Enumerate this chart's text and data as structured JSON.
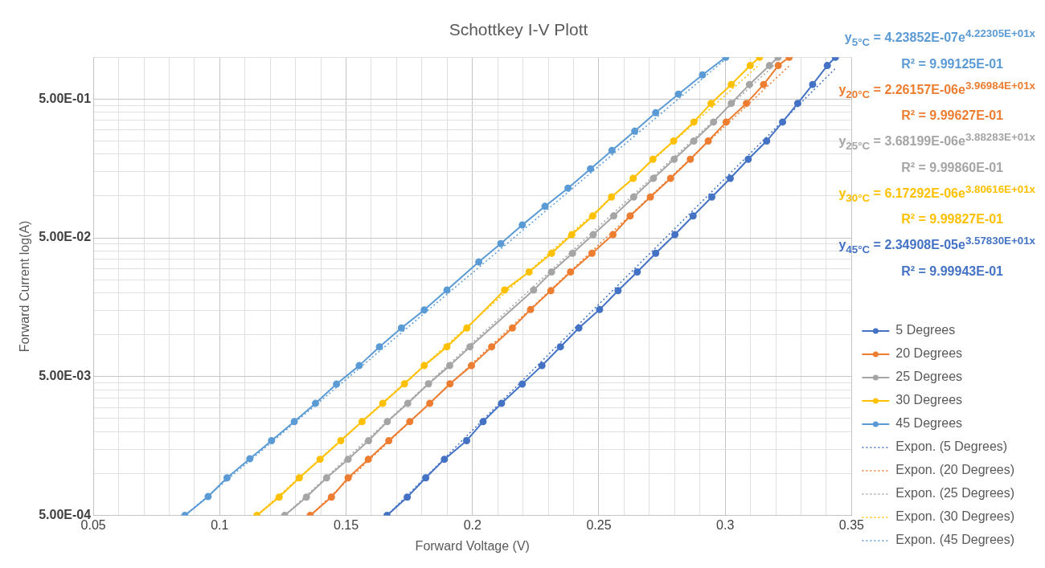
{
  "chart_data": {
    "type": "line",
    "title": "Schottkey I-V Plott",
    "xlabel": "Forward Voltage (V)",
    "ylabel": "Forward Current log(A)",
    "log": "y",
    "grid": true,
    "legend": "right",
    "marker": "circle",
    "line_style": "solid",
    "xlim": [
      0.05,
      0.35
    ],
    "xticks": [
      0.05,
      {
        "value": 0.06,
        "label": null
      },
      {
        "value": 0.07,
        "label": null
      },
      {
        "value": 0.08,
        "label": null
      },
      {
        "value": 0.09,
        "label": null
      },
      0.1,
      {
        "value": 0.11,
        "label": null
      },
      {
        "value": 0.12,
        "label": null
      },
      {
        "value": 0.13,
        "label": null
      },
      {
        "value": 0.14,
        "label": null
      },
      0.15,
      {
        "value": 0.16,
        "label": null
      },
      {
        "value": 0.17,
        "label": null
      },
      {
        "value": 0.18,
        "label": null
      },
      {
        "value": 0.19,
        "label": null
      },
      0.2,
      {
        "value": 0.21,
        "label": null
      },
      {
        "value": 0.22,
        "label": null
      },
      {
        "value": 0.23,
        "label": null
      },
      {
        "value": 0.24,
        "label": null
      },
      0.25,
      {
        "value": 0.26,
        "label": null
      },
      {
        "value": 0.27,
        "label": null
      },
      {
        "value": 0.28,
        "label": null
      },
      {
        "value": 0.29,
        "label": null
      },
      0.3,
      {
        "value": 0.31,
        "label": null
      },
      {
        "value": 0.32,
        "label": null
      },
      {
        "value": 0.33,
        "label": null
      },
      {
        "value": 0.34,
        "label": null
      },
      0.35
    ],
    "ylim": [
      0.0005,
      1
    ],
    "yticks": [
      {
        "value": 0.0005,
        "label": "5.00E-04"
      },
      {
        "value": 0.001,
        "label": null
      },
      {
        "value": 0.0015,
        "label": null
      },
      {
        "value": 0.002,
        "label": null
      },
      {
        "value": 0.0025,
        "label": null
      },
      {
        "value": 0.003,
        "label": null
      },
      {
        "value": 0.0035,
        "label": null
      },
      {
        "value": 0.004,
        "label": null
      },
      {
        "value": 0.0045,
        "label": null
      },
      {
        "value": 0.005,
        "label": "5.00E-03"
      },
      {
        "value": 0.01,
        "label": null
      },
      {
        "value": 0.015,
        "label": null
      },
      {
        "value": 0.02,
        "label": null
      },
      {
        "value": 0.025,
        "label": null
      },
      {
        "value": 0.03,
        "label": null
      },
      {
        "value": 0.035,
        "label": null
      },
      {
        "value": 0.04,
        "label": null
      },
      {
        "value": 0.045,
        "label": null
      },
      {
        "value": 0.05,
        "label": "5.00E-02"
      },
      {
        "value": 0.1,
        "label": null
      },
      {
        "value": 0.15,
        "label": null
      },
      {
        "value": 0.2,
        "label": null
      },
      {
        "value": 0.25,
        "label": null
      },
      {
        "value": 0.3,
        "label": null
      },
      {
        "value": 0.35,
        "label": null
      },
      {
        "value": 0.4,
        "label": null
      },
      {
        "value": 0.45,
        "label": null
      },
      {
        "value": 0.5,
        "label": "5.00E-01"
      },
      {
        "value": 1,
        "label": null
      }
    ],
    "series": [
      {
        "name": "5 Degrees",
        "color": "#4472c4",
        "x": [
          0.1662,
          0.1742,
          0.1815,
          0.1889,
          0.1977,
          0.2042,
          0.2115,
          0.2197,
          0.2275,
          0.2348,
          0.2421,
          0.2503,
          0.2576,
          0.2652,
          0.2725,
          0.2801,
          0.2873,
          0.2947,
          0.302,
          0.3091,
          0.3164,
          0.3227,
          0.3287,
          0.3346,
          0.3404,
          0.3436
        ],
        "values": [
          0.0005,
          0.000678,
          0.000933,
          0.00127,
          0.00173,
          0.00237,
          0.00321,
          0.00442,
          0.006,
          0.0082,
          0.0112,
          0.0152,
          0.0208,
          0.0284,
          0.0387,
          0.0527,
          0.0719,
          0.0984,
          0.134,
          0.184,
          0.249,
          0.341,
          0.465,
          0.636,
          0.871,
          1
        ]
      },
      {
        "name": "20 Degrees",
        "color": "#ed7d31",
        "x": [
          0.1358,
          0.1442,
          0.1508,
          0.1588,
          0.1669,
          0.1752,
          0.1831,
          0.1911,
          0.1996,
          0.2076,
          0.2158,
          0.223,
          0.231,
          0.2388,
          0.2473,
          0.2556,
          0.2624,
          0.2704,
          0.2784,
          0.2862,
          0.2933,
          0.3004,
          0.3084,
          0.3152,
          0.321,
          0.3253
        ],
        "values": [
          0.0005,
          0.000678,
          0.000933,
          0.00127,
          0.00173,
          0.00237,
          0.00321,
          0.00444,
          0.006,
          0.0082,
          0.0112,
          0.0152,
          0.0208,
          0.0284,
          0.0387,
          0.0527,
          0.0719,
          0.0984,
          0.134,
          0.184,
          0.249,
          0.341,
          0.465,
          0.636,
          0.871,
          1
        ]
      },
      {
        "name": "25 Degrees",
        "color": "#a5a5a5",
        "x": [
          0.1257,
          0.1343,
          0.1423,
          0.1508,
          0.1589,
          0.1663,
          0.1744,
          0.1826,
          0.191,
          0.199,
          0.2242,
          0.2313,
          0.2396,
          0.2478,
          0.2559,
          0.2638,
          0.2716,
          0.2798,
          0.2876,
          0.2954,
          0.3024,
          0.3096,
          0.3175,
          0.3209
        ],
        "values": [
          0.0005,
          0.000678,
          0.000933,
          0.00127,
          0.00173,
          0.00237,
          0.00321,
          0.00444,
          0.006,
          0.0082,
          0.021,
          0.0284,
          0.0387,
          0.0527,
          0.0719,
          0.0984,
          0.134,
          0.184,
          0.249,
          0.341,
          0.465,
          0.636,
          0.871,
          1
        ]
      },
      {
        "name": "30 Degrees",
        "color": "#ffc000",
        "x": [
          0.1147,
          0.1235,
          0.1315,
          0.1397,
          0.1479,
          0.1563,
          0.1645,
          0.1731,
          0.1809,
          0.1899,
          0.1978,
          0.2127,
          0.2224,
          0.2313,
          0.2393,
          0.2476,
          0.255,
          0.2636,
          0.2714,
          0.2796,
          0.2876,
          0.2944,
          0.3024,
          0.3099,
          0.3136
        ],
        "values": [
          0.0005,
          0.000678,
          0.000933,
          0.00127,
          0.00173,
          0.00237,
          0.00321,
          0.00444,
          0.006,
          0.0082,
          0.0112,
          0.021,
          0.0284,
          0.0387,
          0.0527,
          0.0719,
          0.0984,
          0.134,
          0.184,
          0.249,
          0.341,
          0.465,
          0.636,
          0.871,
          1
        ]
      },
      {
        "name": "45 Degrees",
        "color": "#5b9bd5",
        "x": [
          0.0862,
          0.0954,
          0.1029,
          0.1119,
          0.1205,
          0.1295,
          0.1379,
          0.1462,
          0.1552,
          0.1632,
          0.1719,
          0.1809,
          0.1899,
          0.2025,
          0.2112,
          0.2197,
          0.2287,
          0.2378,
          0.2467,
          0.2552,
          0.2642,
          0.2725,
          0.2815,
          0.291,
          0.3002
        ],
        "values": [
          0.0005,
          0.000684,
          0.000933,
          0.00128,
          0.00173,
          0.00237,
          0.00321,
          0.00442,
          0.006,
          0.0082,
          0.0112,
          0.0151,
          0.021,
          0.0335,
          0.0454,
          0.0618,
          0.0843,
          0.114,
          0.157,
          0.213,
          0.293,
          0.398,
          0.542,
          0.745,
          1
        ]
      },
      {
        "name": "Expon. (5 Degrees)",
        "color": "#4472c4",
        "marker": "none",
        "line_style": "dotted",
        "x": [
          0.1662,
          0.3436
        ],
        "values": [
          0.0005,
          0.83
        ]
      },
      {
        "name": "Expon. (20 Degrees)",
        "color": "#ed7d31",
        "marker": "none",
        "line_style": "dotted",
        "x": [
          0.1358,
          0.3253
        ],
        "values": [
          0.0005,
          0.865
        ]
      },
      {
        "name": "Expon. (25 Degrees)",
        "color": "#a5a5a5",
        "marker": "none",
        "line_style": "dotted",
        "x": [
          0.1257,
          0.3209
        ],
        "values": [
          0.0005,
          0.93
        ]
      },
      {
        "name": "Expon. (30 Degrees)",
        "color": "#ffc000",
        "marker": "none",
        "line_style": "dotted",
        "x": [
          0.1147,
          0.3136
        ],
        "values": [
          0.0005,
          0.886
        ]
      },
      {
        "name": "Expon. (45 Degrees)",
        "color": "#5b9bd5",
        "marker": "none",
        "line_style": "dotted",
        "x": [
          0.0862,
          0.3002
        ],
        "values": [
          0.0005,
          0.97
        ]
      }
    ],
    "annotations": [
      "y$_{5°C}$ = 4.23852E-07e$^{4.22305E+01x}$",
      "R² = 9.99125E-01",
      "y$_{20°C}$ = 2.26157E-06e$^{3.96984E+01x}$",
      "R² = 9.99627E-01",
      "y$_{25°C}$ = 3.68199E-06e$^{3.88283E+01x}$",
      "R² = 9.99860E-01",
      "y$_{30°C}$ = 6.17292E-06e$^{3.80616E+01x}$",
      "R² = 9.99827E-01",
      "y$_{45°C}$ = 2.34908E-05e$^{3.57830E+01x}$",
      "R² = 9.99943E-01"
    ]
  }
}
